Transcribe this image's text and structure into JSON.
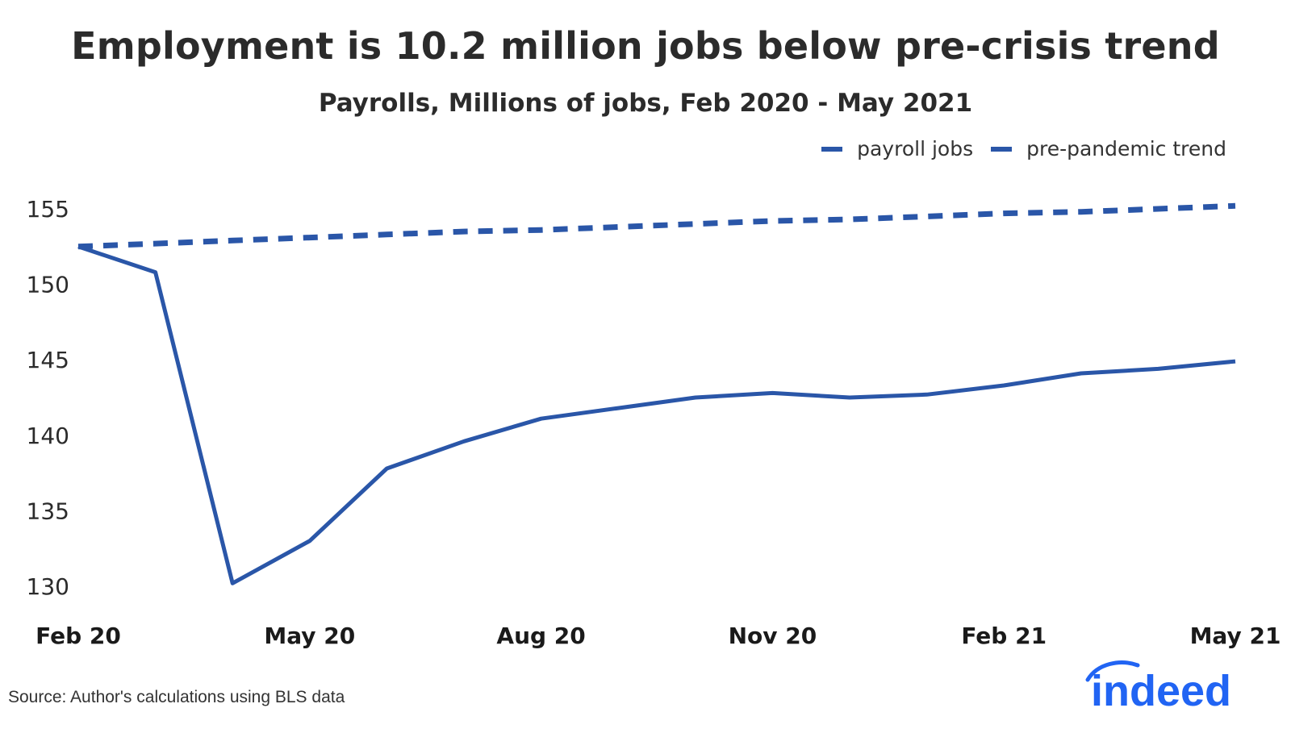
{
  "chart_data": {
    "type": "line",
    "title": "Employment is 10.2 million jobs below pre-crisis trend",
    "subtitle": "Payrolls, Millions of jobs, Feb 2020 - May 2021",
    "xlabel": "",
    "ylabel": "",
    "x": [
      "2020-02",
      "2020-03",
      "2020-04",
      "2020-05",
      "2020-06",
      "2020-07",
      "2020-08",
      "2020-09",
      "2020-10",
      "2020-11",
      "2020-12",
      "2021-01",
      "2021-02",
      "2021-03",
      "2021-04",
      "2021-05"
    ],
    "x_tick_labels": [
      "Feb 20",
      "May 20",
      "Aug 20",
      "Nov 20",
      "Feb 21",
      "May 21"
    ],
    "x_tick_positions": [
      "2020-02",
      "2020-05",
      "2020-08",
      "2020-11",
      "2021-02",
      "2021-05"
    ],
    "ylim": [
      128,
      157
    ],
    "y_ticks": [
      130,
      135,
      140,
      145,
      150,
      155
    ],
    "grid": false,
    "legend_placement": "top-right",
    "series": [
      {
        "name": "payroll jobs",
        "style": "solid",
        "color": "#2a56a8",
        "values": [
          152.5,
          150.8,
          130.2,
          133.0,
          137.8,
          139.6,
          141.1,
          141.8,
          142.5,
          142.8,
          142.5,
          142.7,
          143.3,
          144.1,
          144.4,
          144.9
        ]
      },
      {
        "name": "pre-pandemic trend",
        "style": "dashed",
        "color": "#2a56a8",
        "values": [
          152.5,
          152.7,
          152.9,
          153.1,
          153.3,
          153.5,
          153.6,
          153.8,
          154.0,
          154.2,
          154.3,
          154.5,
          154.7,
          154.8,
          155.0,
          155.2
        ]
      }
    ]
  },
  "source": "Source: Author's calculations using BLS data",
  "logo": {
    "text": "indeed",
    "color": "#2164f3"
  }
}
